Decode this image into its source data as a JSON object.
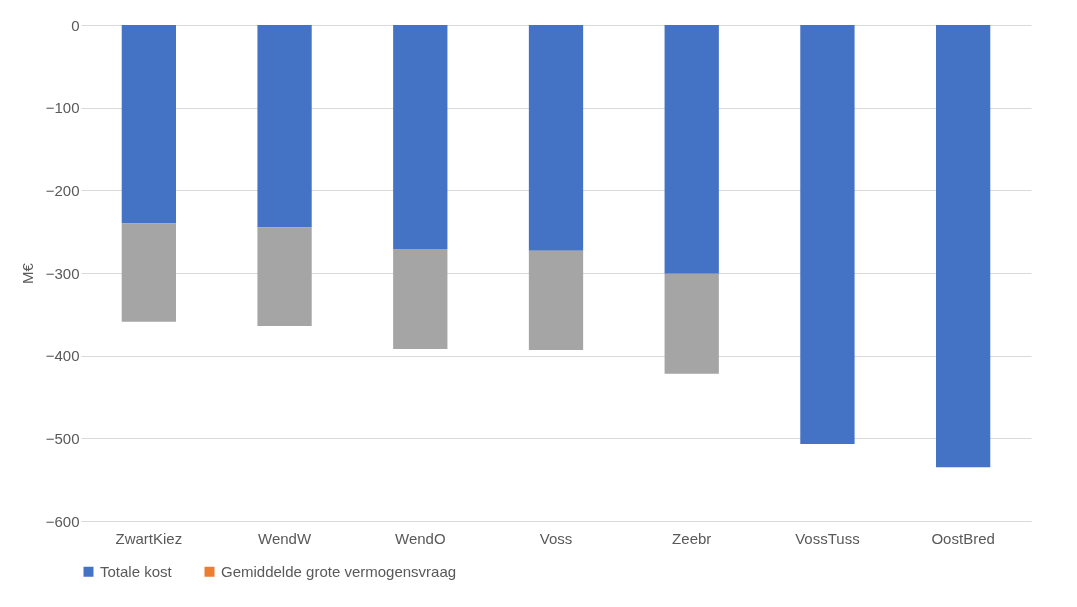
{
  "chart_data": {
    "type": "bar",
    "stacked": true,
    "ylabel": "M€",
    "categories": [
      "ZwartKiez",
      "WendW",
      "WendO",
      "Voss",
      "Zeebr",
      "VossTuss",
      "OostBred"
    ],
    "series": [
      {
        "name": "Totale kost",
        "color": "#4472c4",
        "values": [
          -240,
          -245,
          -271,
          -273,
          -301,
          -507,
          -535
        ]
      },
      {
        "name": "Gemiddelde grote vermogensvraag",
        "color": "#ed7d31",
        "values": [
          null,
          null,
          null,
          null,
          null,
          null,
          null
        ]
      },
      {
        "color": "#a5a5a5",
        "values": [
          -119,
          -119,
          -121,
          -120,
          -121,
          null,
          null
        ]
      }
    ],
    "ylim": [
      -600,
      0
    ],
    "yticks": [
      -600,
      -500,
      -400,
      -300,
      -200,
      -100,
      0
    ],
    "grid": "y",
    "legend": "bottom"
  }
}
